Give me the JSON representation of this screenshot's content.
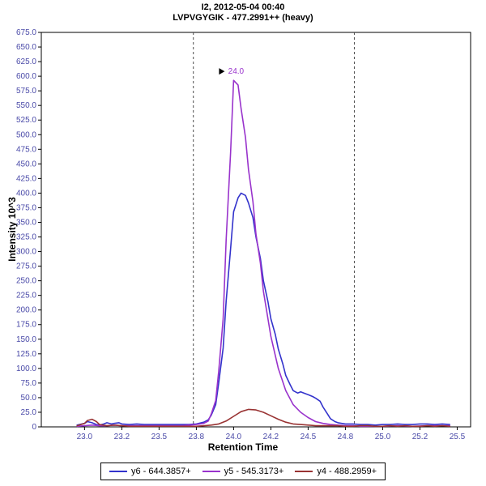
{
  "header": {
    "line1": "I2, 2012-05-04 00:40",
    "line2": "LVPVGYGIK - 477.2991++ (heavy)"
  },
  "axis": {
    "x_title": "Retention Time",
    "y_title": "Intensity 10^3"
  },
  "chart_data": {
    "type": "line",
    "title": "I2, 2012-05-04 00:40",
    "subtitle": "LVPVGYGIK - 477.2991++ (heavy)",
    "xlabel": "Retention Time",
    "ylabel": "Intensity 10^3",
    "xlim": [
      22.71,
      25.59
    ],
    "ylim": [
      0,
      675
    ],
    "grid": false,
    "legend_position": "bottom",
    "tick_color": "#4a4aa8",
    "boundary_color": "#4d4d4d",
    "x_ticks": [
      {
        "v": 23.0,
        "label": "23.0"
      },
      {
        "v": 23.25,
        "label": "23.2"
      },
      {
        "v": 23.5,
        "label": "23.5"
      },
      {
        "v": 23.75,
        "label": "23.8"
      },
      {
        "v": 24.0,
        "label": "24.0"
      },
      {
        "v": 24.25,
        "label": "24.2"
      },
      {
        "v": 24.5,
        "label": "24.5"
      },
      {
        "v": 24.75,
        "label": "24.8"
      },
      {
        "v": 25.0,
        "label": "25.0"
      },
      {
        "v": 25.25,
        "label": "25.2"
      },
      {
        "v": 25.5,
        "label": "25.5"
      }
    ],
    "y_ticks": [
      {
        "v": 0,
        "label": "0"
      },
      {
        "v": 25,
        "label": "25.0"
      },
      {
        "v": 50,
        "label": "50.0"
      },
      {
        "v": 75,
        "label": "75.0"
      },
      {
        "v": 100,
        "label": "100.0"
      },
      {
        "v": 125,
        "label": "125.0"
      },
      {
        "v": 150,
        "label": "150.0"
      },
      {
        "v": 175,
        "label": "175.0"
      },
      {
        "v": 200,
        "label": "200.0"
      },
      {
        "v": 225,
        "label": "225.0"
      },
      {
        "v": 250,
        "label": "250.0"
      },
      {
        "v": 275,
        "label": "275.0"
      },
      {
        "v": 300,
        "label": "300.0"
      },
      {
        "v": 325,
        "label": "325.0"
      },
      {
        "v": 350,
        "label": "350.0"
      },
      {
        "v": 375,
        "label": "375.0"
      },
      {
        "v": 400,
        "label": "400.0"
      },
      {
        "v": 425,
        "label": "425.0"
      },
      {
        "v": 450,
        "label": "450.0"
      },
      {
        "v": 475,
        "label": "475.0"
      },
      {
        "v": 500,
        "label": "500.0"
      },
      {
        "v": 525,
        "label": "525.0"
      },
      {
        "v": 550,
        "label": "550.0"
      },
      {
        "v": 575,
        "label": "575.0"
      },
      {
        "v": 600,
        "label": "600.0"
      },
      {
        "v": 625,
        "label": "625.0"
      },
      {
        "v": 650,
        "label": "650.0"
      },
      {
        "v": 675,
        "label": "675.0"
      }
    ],
    "integration_boundaries": [
      23.73,
      24.81
    ],
    "peak_annotation": {
      "text": "24.0",
      "rt": 24.0,
      "intensity": 593,
      "color": "#9933cc"
    },
    "series": [
      {
        "id": "y6",
        "name": "y6 - 644.3857+",
        "color": "#3333cc",
        "points": [
          [
            22.95,
            3
          ],
          [
            23.0,
            6
          ],
          [
            23.02,
            9
          ],
          [
            23.05,
            7
          ],
          [
            23.08,
            4
          ],
          [
            23.1,
            3
          ],
          [
            23.13,
            5
          ],
          [
            23.15,
            7
          ],
          [
            23.18,
            5
          ],
          [
            23.2,
            6
          ],
          [
            23.23,
            7
          ],
          [
            23.25,
            5
          ],
          [
            23.3,
            4
          ],
          [
            23.35,
            5
          ],
          [
            23.4,
            4
          ],
          [
            23.45,
            4
          ],
          [
            23.5,
            4
          ],
          [
            23.55,
            4
          ],
          [
            23.6,
            4
          ],
          [
            23.65,
            4
          ],
          [
            23.7,
            4
          ],
          [
            23.75,
            5
          ],
          [
            23.8,
            8
          ],
          [
            23.83,
            12
          ],
          [
            23.85,
            20
          ],
          [
            23.88,
            38
          ],
          [
            23.9,
            75
          ],
          [
            23.93,
            135
          ],
          [
            23.95,
            215
          ],
          [
            23.98,
            305
          ],
          [
            24.0,
            368
          ],
          [
            24.03,
            392
          ],
          [
            24.05,
            400
          ],
          [
            24.08,
            396
          ],
          [
            24.1,
            383
          ],
          [
            24.13,
            358
          ],
          [
            24.15,
            325
          ],
          [
            24.18,
            288
          ],
          [
            24.2,
            250
          ],
          [
            24.23,
            215
          ],
          [
            24.25,
            185
          ],
          [
            24.28,
            158
          ],
          [
            24.3,
            133
          ],
          [
            24.33,
            108
          ],
          [
            24.35,
            88
          ],
          [
            24.38,
            72
          ],
          [
            24.4,
            62
          ],
          [
            24.43,
            58
          ],
          [
            24.45,
            60
          ],
          [
            24.48,
            57
          ],
          [
            24.5,
            55
          ],
          [
            24.53,
            52
          ],
          [
            24.55,
            49
          ],
          [
            24.58,
            44
          ],
          [
            24.6,
            34
          ],
          [
            24.63,
            22
          ],
          [
            24.65,
            14
          ],
          [
            24.68,
            9
          ],
          [
            24.7,
            7
          ],
          [
            24.75,
            5
          ],
          [
            24.8,
            5
          ],
          [
            24.85,
            4
          ],
          [
            24.9,
            4
          ],
          [
            24.95,
            3
          ],
          [
            25.0,
            4
          ],
          [
            25.05,
            4
          ],
          [
            25.1,
            5
          ],
          [
            25.15,
            4
          ],
          [
            25.2,
            4
          ],
          [
            25.25,
            5
          ],
          [
            25.3,
            5
          ],
          [
            25.35,
            4
          ],
          [
            25.4,
            5
          ],
          [
            25.45,
            4
          ]
        ]
      },
      {
        "id": "y5",
        "name": "y5 - 545.3173+",
        "color": "#9933cc",
        "points": [
          [
            22.95,
            1
          ],
          [
            23.0,
            2
          ],
          [
            23.05,
            3
          ],
          [
            23.1,
            2
          ],
          [
            23.15,
            2
          ],
          [
            23.2,
            3
          ],
          [
            23.25,
            2
          ],
          [
            23.3,
            2
          ],
          [
            23.35,
            2
          ],
          [
            23.4,
            2
          ],
          [
            23.45,
            2
          ],
          [
            23.5,
            2
          ],
          [
            23.55,
            2
          ],
          [
            23.6,
            2
          ],
          [
            23.65,
            2
          ],
          [
            23.7,
            3
          ],
          [
            23.75,
            4
          ],
          [
            23.8,
            6
          ],
          [
            23.83,
            10
          ],
          [
            23.85,
            22
          ],
          [
            23.88,
            45
          ],
          [
            23.9,
            95
          ],
          [
            23.93,
            185
          ],
          [
            23.95,
            320
          ],
          [
            23.98,
            470
          ],
          [
            24.0,
            593
          ],
          [
            24.03,
            585
          ],
          [
            24.05,
            545
          ],
          [
            24.08,
            495
          ],
          [
            24.1,
            440
          ],
          [
            24.13,
            385
          ],
          [
            24.15,
            330
          ],
          [
            24.18,
            280
          ],
          [
            24.2,
            232
          ],
          [
            24.25,
            155
          ],
          [
            24.3,
            100
          ],
          [
            24.35,
            62
          ],
          [
            24.4,
            38
          ],
          [
            24.45,
            25
          ],
          [
            24.5,
            16
          ],
          [
            24.55,
            9
          ],
          [
            24.6,
            6
          ],
          [
            24.65,
            4
          ],
          [
            24.7,
            3
          ],
          [
            24.75,
            2
          ],
          [
            24.8,
            2
          ],
          [
            24.85,
            1
          ],
          [
            24.9,
            1
          ],
          [
            25.0,
            1
          ],
          [
            25.1,
            2
          ],
          [
            25.2,
            1
          ],
          [
            25.3,
            2
          ],
          [
            25.4,
            2
          ],
          [
            25.45,
            2
          ]
        ]
      },
      {
        "id": "y4",
        "name": "y4 - 488.2959+",
        "color": "#993333",
        "points": [
          [
            22.95,
            2
          ],
          [
            23.0,
            6
          ],
          [
            23.02,
            11
          ],
          [
            23.05,
            13
          ],
          [
            23.08,
            9
          ],
          [
            23.1,
            4
          ],
          [
            23.15,
            2
          ],
          [
            23.2,
            3
          ],
          [
            23.25,
            2
          ],
          [
            23.3,
            1
          ],
          [
            23.35,
            1
          ],
          [
            23.4,
            1
          ],
          [
            23.45,
            1
          ],
          [
            23.5,
            1
          ],
          [
            23.55,
            1
          ],
          [
            23.6,
            1
          ],
          [
            23.65,
            1
          ],
          [
            23.7,
            1
          ],
          [
            23.75,
            1
          ],
          [
            23.8,
            2
          ],
          [
            23.85,
            3
          ],
          [
            23.9,
            5
          ],
          [
            23.95,
            10
          ],
          [
            24.0,
            18
          ],
          [
            24.05,
            26
          ],
          [
            24.1,
            30
          ],
          [
            24.15,
            29
          ],
          [
            24.2,
            25
          ],
          [
            24.25,
            19
          ],
          [
            24.3,
            13
          ],
          [
            24.35,
            8
          ],
          [
            24.4,
            5
          ],
          [
            24.45,
            4
          ],
          [
            24.5,
            3
          ],
          [
            24.55,
            2
          ],
          [
            24.6,
            2
          ],
          [
            24.65,
            2
          ],
          [
            24.7,
            2
          ],
          [
            24.75,
            1
          ],
          [
            24.8,
            1
          ],
          [
            24.85,
            2
          ],
          [
            24.9,
            2
          ],
          [
            24.95,
            1
          ],
          [
            25.0,
            1
          ],
          [
            25.05,
            2
          ],
          [
            25.1,
            1
          ],
          [
            25.15,
            2
          ],
          [
            25.2,
            1
          ],
          [
            25.25,
            1
          ],
          [
            25.3,
            2
          ],
          [
            25.35,
            1
          ],
          [
            25.4,
            2
          ],
          [
            25.45,
            1
          ]
        ]
      }
    ]
  }
}
